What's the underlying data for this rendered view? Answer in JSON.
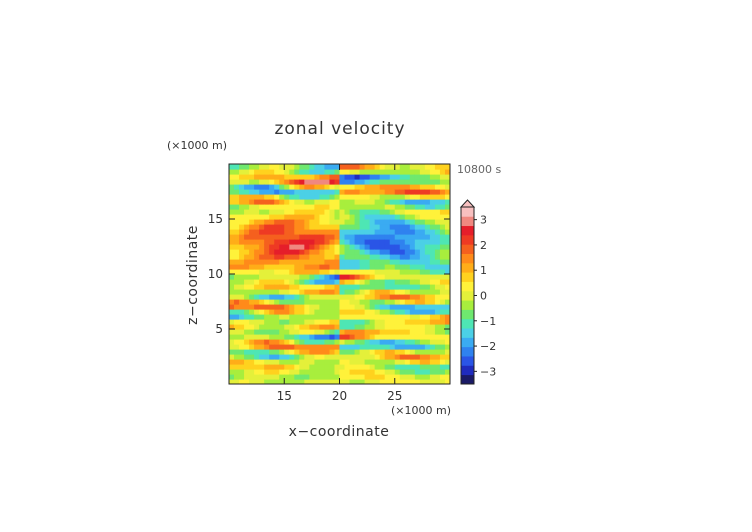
{
  "chart_data": {
    "type": "heatmap",
    "title": "zonal velocity",
    "xlabel": "x−coordinate",
    "ylabel": "z−coordinate",
    "x_unit": "(×1000 m)",
    "z_unit": "(×1000 m)",
    "time_label": "10800 s",
    "xlim": [
      10,
      30
    ],
    "ylim": [
      0,
      20
    ],
    "x_ticks": [
      15,
      20,
      25
    ],
    "y_ticks": [
      5,
      10,
      15
    ],
    "x_tick_labels": [
      "15",
      "20",
      "25"
    ],
    "y_tick_labels": [
      "5",
      "10",
      "15"
    ],
    "colorbar": {
      "ticks": [
        3,
        2,
        1,
        0,
        -1,
        -2,
        -3
      ],
      "tick_labels": [
        "3",
        "2",
        "1",
        "0",
        "−1",
        "−2",
        "−3"
      ],
      "range": [
        -3.5,
        3.5
      ],
      "colors": [
        "#1a1a66",
        "#1f2bbd",
        "#2a55e6",
        "#2f82ef",
        "#3aabf2",
        "#4bd0e6",
        "#4ee6b4",
        "#6fe86f",
        "#a8ee3d",
        "#e4f03a",
        "#fff23a",
        "#ffd21e",
        "#ffad18",
        "#ff8a1a",
        "#f5601e",
        "#ee3a23",
        "#e51e2a",
        "#f08880",
        "#f8c0c0"
      ]
    },
    "bands": [
      {
        "z": 0.7,
        "amp": -1.0
      },
      {
        "z": 1.7,
        "amp": 1.6
      },
      {
        "z": 2.6,
        "amp": -1.8
      },
      {
        "z": 3.5,
        "amp": 2.4
      },
      {
        "z": 4.4,
        "amp": -2.2
      },
      {
        "z": 5.3,
        "amp": 1.8
      },
      {
        "z": 6.1,
        "amp": -2.5
      },
      {
        "z": 7.0,
        "amp": 2.6
      },
      {
        "z": 7.9,
        "amp": -1.8
      },
      {
        "z": 8.8,
        "amp": 1.6
      },
      {
        "z": 9.7,
        "amp": -2.6
      },
      {
        "z": 10.5,
        "amp": 1.4
      },
      {
        "z": 13.0,
        "amp": 2.5
      },
      {
        "z": 15.9,
        "amp": -1.7
      },
      {
        "z": 16.6,
        "amp": 1.9
      },
      {
        "z": 17.6,
        "amp": -2.6
      },
      {
        "z": 18.6,
        "amp": 2.8
      },
      {
        "z": 19.6,
        "amp": -1.8
      }
    ]
  }
}
